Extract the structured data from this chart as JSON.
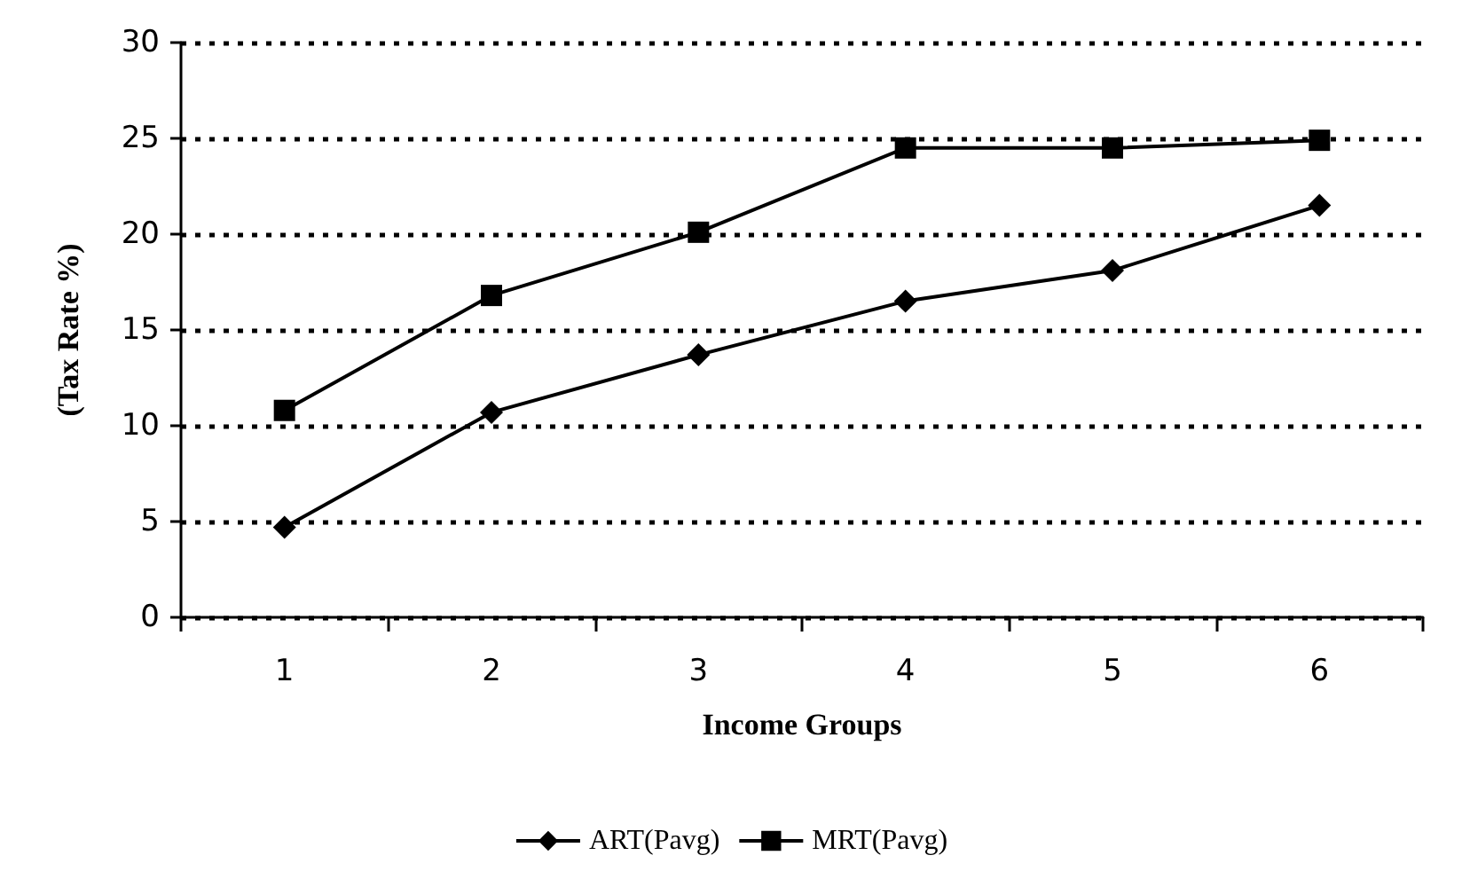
{
  "chart_data": {
    "type": "line",
    "xlabel": "Income Groups",
    "ylabel": "(Tax Rate %)",
    "categories": [
      "1",
      "2",
      "3",
      "4",
      "5",
      "6"
    ],
    "series": [
      {
        "name": "ART(Pavg)",
        "color": "#000000",
        "marker": "diamond",
        "values": [
          4.7,
          10.7,
          13.7,
          16.5,
          18.1,
          21.5
        ]
      },
      {
        "name": "MRT(Pavg)",
        "color": "#000000",
        "marker": "square",
        "values": [
          10.8,
          16.8,
          20.1,
          24.5,
          24.5,
          24.9
        ]
      }
    ],
    "ylim": [
      0,
      30
    ],
    "yticks": [
      0,
      5,
      10,
      15,
      20,
      25,
      30
    ],
    "grid": "y",
    "legend": "bottom",
    "line_style": "solid"
  }
}
